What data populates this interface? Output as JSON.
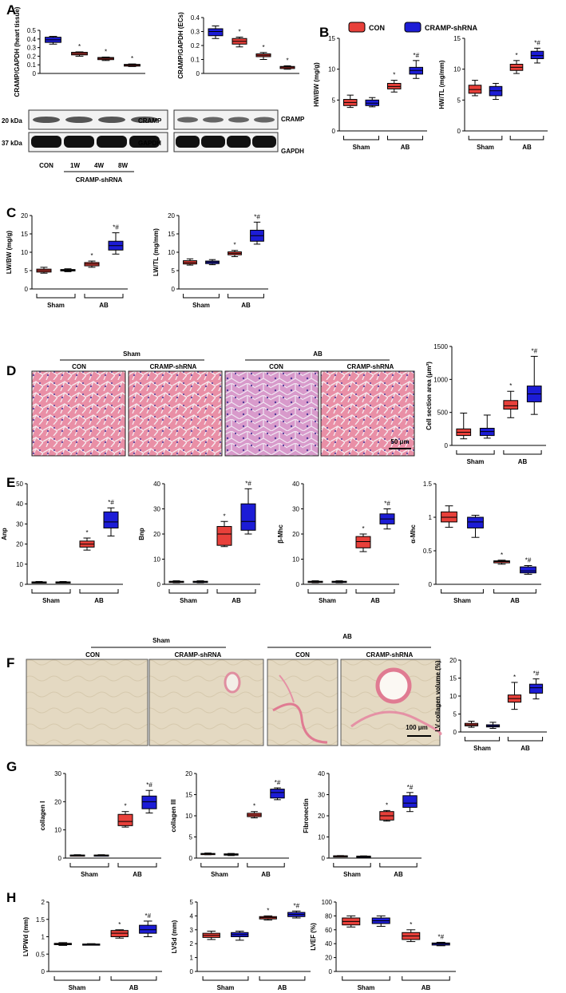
{
  "panels": [
    "A",
    "B",
    "C",
    "D",
    "E",
    "F",
    "G",
    "H"
  ],
  "colors": {
    "con": "#e8403a",
    "shrna": "#1c1cd6",
    "box_stroke": "#000"
  },
  "legend": {
    "con": "CON",
    "shrna": "CRAMP-shRNA"
  },
  "panel_a_blot": {
    "markers": [
      "20 kDa",
      "37 kDa"
    ],
    "bands": [
      "CRAMP",
      "GAPDH"
    ],
    "lanes": [
      "CON",
      "1W",
      "4W",
      "8W"
    ],
    "group": "CRAMP-shRNA"
  },
  "panel_d_images": {
    "groups": [
      "Sham",
      "AB"
    ],
    "subs": [
      "CON",
      "CRAMP-shRNA"
    ],
    "scale": "50 μm"
  },
  "panel_f_images": {
    "groups": [
      "Sham",
      "AB"
    ],
    "subs": [
      "CON",
      "CRAMP-shRNA"
    ],
    "scale": "100 μm"
  },
  "chart_data": [
    {
      "id": "a1",
      "type": "box",
      "ylabel": "CRAMP/GAPDH (heart tissue)",
      "ylim": [
        0,
        0.5
      ],
      "yticks": [
        0,
        0.1,
        0.2,
        0.3,
        0.4,
        0.5
      ],
      "categories": [],
      "boxes": [
        {
          "color": "shrna",
          "min": 0.34,
          "q1": 0.36,
          "med": 0.39,
          "q3": 0.42,
          "max": 0.43,
          "mark": ""
        },
        {
          "color": "con",
          "min": 0.2,
          "q1": 0.215,
          "med": 0.23,
          "q3": 0.245,
          "max": 0.25,
          "mark": "*"
        },
        {
          "color": "con",
          "min": 0.15,
          "q1": 0.16,
          "med": 0.175,
          "q3": 0.185,
          "max": 0.19,
          "mark": "*"
        },
        {
          "color": "con",
          "min": 0.08,
          "q1": 0.085,
          "med": 0.095,
          "q3": 0.105,
          "max": 0.11,
          "mark": "*"
        }
      ]
    },
    {
      "id": "a2",
      "type": "box",
      "ylabel": "CRAMP/GAPDH (ECs)",
      "ylim": [
        0,
        0.4
      ],
      "yticks": [
        0,
        0.1,
        0.2,
        0.3,
        0.4
      ],
      "categories": [],
      "boxes": [
        {
          "color": "shrna",
          "min": 0.25,
          "q1": 0.27,
          "med": 0.3,
          "q3": 0.32,
          "max": 0.34,
          "mark": ""
        },
        {
          "color": "con",
          "min": 0.19,
          "q1": 0.21,
          "med": 0.23,
          "q3": 0.25,
          "max": 0.26,
          "mark": "*"
        },
        {
          "color": "con",
          "min": 0.1,
          "q1": 0.12,
          "med": 0.13,
          "q3": 0.14,
          "max": 0.15,
          "mark": "*"
        },
        {
          "color": "con",
          "min": 0.03,
          "q1": 0.035,
          "med": 0.045,
          "q3": 0.05,
          "max": 0.055,
          "mark": "*"
        }
      ]
    },
    {
      "id": "b1",
      "type": "box",
      "ylabel": "HW/BW (mg/g)",
      "ylim": [
        0,
        15
      ],
      "yticks": [
        0,
        5,
        10,
        15
      ],
      "categories": [
        "Sham",
        "AB"
      ],
      "boxes": [
        {
          "color": "con",
          "min": 3.8,
          "q1": 4.1,
          "med": 4.6,
          "q3": 5.1,
          "max": 5.8,
          "mark": ""
        },
        {
          "color": "shrna",
          "min": 3.9,
          "q1": 4.1,
          "med": 4.5,
          "q3": 5.0,
          "max": 5.4,
          "mark": ""
        },
        {
          "color": "con",
          "min": 6.3,
          "q1": 6.8,
          "med": 7.2,
          "q3": 7.7,
          "max": 8.2,
          "mark": "*"
        },
        {
          "color": "shrna",
          "min": 8.5,
          "q1": 9.2,
          "med": 9.8,
          "q3": 10.3,
          "max": 11.4,
          "mark": "*#"
        }
      ]
    },
    {
      "id": "b2",
      "type": "box",
      "ylabel": "HW/TL (mg/mm)",
      "ylim": [
        0,
        15
      ],
      "yticks": [
        0,
        5,
        10,
        15
      ],
      "categories": [
        "Sham",
        "AB"
      ],
      "boxes": [
        {
          "color": "con",
          "min": 5.7,
          "q1": 6.1,
          "med": 6.7,
          "q3": 7.4,
          "max": 8.2,
          "mark": ""
        },
        {
          "color": "shrna",
          "min": 5.1,
          "q1": 5.7,
          "med": 6.5,
          "q3": 7.2,
          "max": 7.7,
          "mark": ""
        },
        {
          "color": "con",
          "min": 9.3,
          "q1": 9.8,
          "med": 10.3,
          "q3": 10.8,
          "max": 11.4,
          "mark": "*"
        },
        {
          "color": "shrna",
          "min": 11.0,
          "q1": 11.7,
          "med": 12.2,
          "q3": 12.9,
          "max": 13.4,
          "mark": "*#"
        }
      ]
    },
    {
      "id": "c1",
      "type": "box",
      "ylabel": "LW/BW (mg/g)",
      "ylim": [
        0,
        20
      ],
      "yticks": [
        0,
        5,
        10,
        15,
        20
      ],
      "categories": [
        "Sham",
        "AB"
      ],
      "boxes": [
        {
          "color": "con",
          "min": 4.3,
          "q1": 4.6,
          "med": 5.0,
          "q3": 5.4,
          "max": 5.9,
          "mark": ""
        },
        {
          "color": "shrna",
          "min": 4.7,
          "q1": 4.9,
          "med": 5.1,
          "q3": 5.3,
          "max": 5.5,
          "mark": ""
        },
        {
          "color": "con",
          "min": 5.9,
          "q1": 6.3,
          "med": 6.8,
          "q3": 7.2,
          "max": 7.6,
          "mark": "*"
        },
        {
          "color": "shrna",
          "min": 9.5,
          "q1": 10.6,
          "med": 11.8,
          "q3": 13.0,
          "max": 15.3,
          "mark": "*#"
        }
      ]
    },
    {
      "id": "c2",
      "type": "box",
      "ylabel": "LW/TL (mg/mm)",
      "ylim": [
        0,
        20
      ],
      "yticks": [
        0,
        5,
        10,
        15,
        20
      ],
      "categories": [
        "Sham",
        "AB"
      ],
      "boxes": [
        {
          "color": "con",
          "min": 6.5,
          "q1": 6.8,
          "med": 7.2,
          "q3": 7.7,
          "max": 8.2,
          "mark": ""
        },
        {
          "color": "shrna",
          "min": 6.6,
          "q1": 6.9,
          "med": 7.3,
          "q3": 7.6,
          "max": 8.0,
          "mark": ""
        },
        {
          "color": "con",
          "min": 8.8,
          "q1": 9.3,
          "med": 9.7,
          "q3": 10.1,
          "max": 10.5,
          "mark": "*"
        },
        {
          "color": "shrna",
          "min": 12.2,
          "q1": 13.0,
          "med": 14.5,
          "q3": 16.0,
          "max": 18.2,
          "mark": "*#"
        }
      ]
    },
    {
      "id": "d1",
      "type": "box",
      "ylabel": "Cell section area (μm²)",
      "ylim": [
        0,
        1500
      ],
      "yticks": [
        0,
        500,
        1000,
        1500
      ],
      "categories": [
        "Sham",
        "AB"
      ],
      "boxes": [
        {
          "color": "con",
          "min": 100,
          "q1": 150,
          "med": 200,
          "q3": 250,
          "max": 490,
          "mark": ""
        },
        {
          "color": "shrna",
          "min": 110,
          "q1": 150,
          "med": 210,
          "q3": 260,
          "max": 460,
          "mark": ""
        },
        {
          "color": "con",
          "min": 420,
          "q1": 550,
          "med": 600,
          "q3": 680,
          "max": 820,
          "mark": "*"
        },
        {
          "color": "shrna",
          "min": 470,
          "q1": 660,
          "med": 780,
          "q3": 900,
          "max": 1350,
          "mark": "*#"
        }
      ]
    },
    {
      "id": "e1",
      "type": "box",
      "ylabel": "Anp",
      "ylim": [
        0,
        50
      ],
      "yticks": [
        0,
        10,
        20,
        30,
        40,
        50
      ],
      "categories": [
        "Sham",
        "AB"
      ],
      "boxes": [
        {
          "color": "con",
          "min": 0.6,
          "q1": 0.8,
          "med": 1.0,
          "q3": 1.2,
          "max": 1.4,
          "mark": ""
        },
        {
          "color": "shrna",
          "min": 0.6,
          "q1": 0.8,
          "med": 1.0,
          "q3": 1.2,
          "max": 1.4,
          "mark": ""
        },
        {
          "color": "con",
          "min": 17,
          "q1": 18.5,
          "med": 20,
          "q3": 21.5,
          "max": 23,
          "mark": "*"
        },
        {
          "color": "shrna",
          "min": 24,
          "q1": 28,
          "med": 31,
          "q3": 36,
          "max": 38,
          "mark": "*#"
        }
      ]
    },
    {
      "id": "e2",
      "type": "box",
      "ylabel": "Bnp",
      "ylim": [
        0,
        40
      ],
      "yticks": [
        0,
        10,
        20,
        30,
        40
      ],
      "categories": [
        "Sham",
        "AB"
      ],
      "boxes": [
        {
          "color": "con",
          "min": 0.6,
          "q1": 0.8,
          "med": 1.0,
          "q3": 1.2,
          "max": 1.4,
          "mark": ""
        },
        {
          "color": "shrna",
          "min": 0.6,
          "q1": 0.8,
          "med": 1.0,
          "q3": 1.2,
          "max": 1.4,
          "mark": ""
        },
        {
          "color": "con",
          "min": 15,
          "q1": 15.5,
          "med": 20,
          "q3": 23,
          "max": 25,
          "mark": "*"
        },
        {
          "color": "shrna",
          "min": 20,
          "q1": 21.5,
          "med": 25,
          "q3": 32,
          "max": 38,
          "mark": "*#"
        }
      ]
    },
    {
      "id": "e3",
      "type": "box",
      "ylabel": "β-Mhc",
      "ylim": [
        0,
        40
      ],
      "yticks": [
        0,
        10,
        20,
        30,
        40
      ],
      "categories": [
        "Sham",
        "AB"
      ],
      "boxes": [
        {
          "color": "con",
          "min": 0.6,
          "q1": 0.8,
          "med": 1.0,
          "q3": 1.2,
          "max": 1.4,
          "mark": ""
        },
        {
          "color": "shrna",
          "min": 0.6,
          "q1": 0.8,
          "med": 1.0,
          "q3": 1.2,
          "max": 1.4,
          "mark": ""
        },
        {
          "color": "con",
          "min": 13,
          "q1": 14.5,
          "med": 17,
          "q3": 19,
          "max": 20,
          "mark": "*"
        },
        {
          "color": "shrna",
          "min": 22,
          "q1": 24,
          "med": 26,
          "q3": 28,
          "max": 30,
          "mark": "*#"
        }
      ]
    },
    {
      "id": "e4",
      "type": "box",
      "ylabel": "α-Mhc",
      "ylim": [
        0,
        1.5
      ],
      "yticks": [
        0,
        0.5,
        1.0,
        1.5
      ],
      "categories": [
        "Sham",
        "AB"
      ],
      "boxes": [
        {
          "color": "con",
          "min": 0.85,
          "q1": 0.93,
          "med": 1.0,
          "q3": 1.08,
          "max": 1.17,
          "mark": ""
        },
        {
          "color": "shrna",
          "min": 0.7,
          "q1": 0.84,
          "med": 0.93,
          "q3": 1.0,
          "max": 1.03,
          "mark": ""
        },
        {
          "color": "con",
          "min": 0.3,
          "q1": 0.32,
          "med": 0.34,
          "q3": 0.35,
          "max": 0.36,
          "mark": "*"
        },
        {
          "color": "shrna",
          "min": 0.15,
          "q1": 0.17,
          "med": 0.2,
          "q3": 0.26,
          "max": 0.28,
          "mark": "*#"
        }
      ]
    },
    {
      "id": "f1",
      "type": "box",
      "ylabel": "LV collagen volume (%)",
      "ylim": [
        0,
        20
      ],
      "yticks": [
        0,
        5,
        10,
        15,
        20
      ],
      "categories": [
        "Sham",
        "AB"
      ],
      "boxes": [
        {
          "color": "con",
          "min": 1.3,
          "q1": 1.7,
          "med": 2.0,
          "q3": 2.4,
          "max": 3.0,
          "mark": ""
        },
        {
          "color": "shrna",
          "min": 1.0,
          "q1": 1.4,
          "med": 1.7,
          "q3": 2.0,
          "max": 2.7,
          "mark": ""
        },
        {
          "color": "con",
          "min": 6.3,
          "q1": 8.3,
          "med": 9.3,
          "q3": 10.3,
          "max": 13.8,
          "mark": "*"
        },
        {
          "color": "shrna",
          "min": 9.2,
          "q1": 10.8,
          "med": 12.3,
          "q3": 13.3,
          "max": 14.8,
          "mark": "*#"
        }
      ]
    },
    {
      "id": "g1",
      "type": "box",
      "ylabel": "collagen I",
      "ylim": [
        0,
        30
      ],
      "yticks": [
        0,
        10,
        20,
        30
      ],
      "categories": [
        "Sham",
        "AB"
      ],
      "boxes": [
        {
          "color": "con",
          "min": 0.8,
          "q1": 0.9,
          "med": 1.0,
          "q3": 1.1,
          "max": 1.2,
          "mark": ""
        },
        {
          "color": "shrna",
          "min": 0.8,
          "q1": 0.9,
          "med": 1.0,
          "q3": 1.1,
          "max": 1.2,
          "mark": ""
        },
        {
          "color": "con",
          "min": 11,
          "q1": 11.5,
          "med": 13,
          "q3": 15.5,
          "max": 16.5,
          "mark": "*"
        },
        {
          "color": "shrna",
          "min": 16,
          "q1": 17.5,
          "med": 20,
          "q3": 22,
          "max": 24,
          "mark": "*#"
        }
      ]
    },
    {
      "id": "g2",
      "type": "box",
      "ylabel": "collagen III",
      "ylim": [
        0,
        20
      ],
      "yticks": [
        0,
        5,
        10,
        15,
        20
      ],
      "categories": [
        "Sham",
        "AB"
      ],
      "boxes": [
        {
          "color": "con",
          "min": 0.8,
          "q1": 0.9,
          "med": 1.0,
          "q3": 1.1,
          "max": 1.2,
          "mark": ""
        },
        {
          "color": "shrna",
          "min": 0.6,
          "q1": 0.7,
          "med": 0.85,
          "q3": 1.0,
          "max": 1.1,
          "mark": ""
        },
        {
          "color": "con",
          "min": 9.5,
          "q1": 9.8,
          "med": 10.2,
          "q3": 10.6,
          "max": 11.0,
          "mark": "*"
        },
        {
          "color": "shrna",
          "min": 13.8,
          "q1": 14.2,
          "med": 15.5,
          "q3": 16.3,
          "max": 16.6,
          "mark": "*#"
        }
      ]
    },
    {
      "id": "g3",
      "type": "box",
      "ylabel": "Fibronectin",
      "ylim": [
        0,
        40
      ],
      "yticks": [
        0,
        10,
        20,
        30,
        40
      ],
      "categories": [
        "Sham",
        "AB"
      ],
      "boxes": [
        {
          "color": "con",
          "min": 0.8,
          "q1": 0.9,
          "med": 1.0,
          "q3": 1.1,
          "max": 1.2,
          "mark": ""
        },
        {
          "color": "shrna",
          "min": 0.6,
          "q1": 0.7,
          "med": 0.8,
          "q3": 0.95,
          "max": 1.05,
          "mark": ""
        },
        {
          "color": "con",
          "min": 17.5,
          "q1": 18,
          "med": 20,
          "q3": 22,
          "max": 22.5,
          "mark": "*"
        },
        {
          "color": "shrna",
          "min": 22,
          "q1": 24,
          "med": 26,
          "q3": 29.5,
          "max": 31,
          "mark": "*#"
        }
      ]
    },
    {
      "id": "h1",
      "type": "box",
      "ylabel": "LVPWd (mm)",
      "ylim": [
        0,
        2.0
      ],
      "yticks": [
        0,
        0.5,
        1.0,
        1.5,
        2.0
      ],
      "categories": [
        "Sham",
        "AB"
      ],
      "boxes": [
        {
          "color": "con",
          "min": 0.75,
          "q1": 0.77,
          "med": 0.79,
          "q3": 0.81,
          "max": 0.83,
          "mark": ""
        },
        {
          "color": "shrna",
          "min": 0.76,
          "q1": 0.77,
          "med": 0.78,
          "q3": 0.79,
          "max": 0.8,
          "mark": ""
        },
        {
          "color": "con",
          "min": 0.96,
          "q1": 1.0,
          "med": 1.1,
          "q3": 1.18,
          "max": 1.2,
          "mark": "*"
        },
        {
          "color": "shrna",
          "min": 1.0,
          "q1": 1.1,
          "med": 1.2,
          "q3": 1.33,
          "max": 1.45,
          "mark": "*#"
        }
      ]
    },
    {
      "id": "h2",
      "type": "box",
      "ylabel": "LVSd (mm)",
      "ylim": [
        0,
        5
      ],
      "yticks": [
        0,
        1,
        2,
        3,
        4,
        5
      ],
      "categories": [
        "Sham",
        "AB"
      ],
      "boxes": [
        {
          "color": "con",
          "min": 2.3,
          "q1": 2.45,
          "med": 2.6,
          "q3": 2.75,
          "max": 2.9,
          "mark": ""
        },
        {
          "color": "shrna",
          "min": 2.25,
          "q1": 2.5,
          "med": 2.65,
          "q3": 2.8,
          "max": 2.9,
          "mark": ""
        },
        {
          "color": "con",
          "min": 3.7,
          "q1": 3.78,
          "med": 3.87,
          "q3": 3.95,
          "max": 4.0,
          "mark": "*"
        },
        {
          "color": "shrna",
          "min": 3.85,
          "q1": 3.95,
          "med": 4.1,
          "q3": 4.25,
          "max": 4.35,
          "mark": "*#"
        }
      ]
    },
    {
      "id": "h3",
      "type": "box",
      "ylabel": "LVEF (%)",
      "ylim": [
        0,
        100
      ],
      "yticks": [
        0,
        20,
        40,
        60,
        80,
        100
      ],
      "categories": [
        "Sham",
        "AB"
      ],
      "boxes": [
        {
          "color": "con",
          "min": 64,
          "q1": 67,
          "med": 72,
          "q3": 77,
          "max": 80,
          "mark": ""
        },
        {
          "color": "shrna",
          "min": 65,
          "q1": 69,
          "med": 73,
          "q3": 77,
          "max": 80,
          "mark": ""
        },
        {
          "color": "con",
          "min": 43,
          "q1": 46,
          "med": 51,
          "q3": 56,
          "max": 60,
          "mark": "*"
        },
        {
          "color": "shrna",
          "min": 37,
          "q1": 38,
          "med": 40,
          "q3": 41,
          "max": 42,
          "mark": "*#"
        }
      ]
    }
  ]
}
